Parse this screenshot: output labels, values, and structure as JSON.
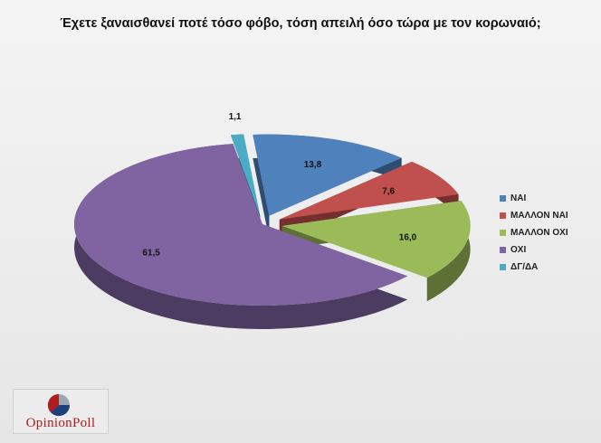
{
  "title": "Έχετε ξαναισθανεί ποτέ τόσο φόβο, τόση απειλή όσο τώρα με τον κορωναιό;",
  "chart_data": {
    "type": "pie",
    "title": "Έχετε ξαναισθανεί ποτέ τόσο φόβο, τόση απειλή όσο τώρα με τον κορωναιό;",
    "categories": [
      "ΝΑΙ",
      "ΜΑΛΛΟΝ ΝΑΙ",
      "ΜΑΛΛΟΝ ΟΧΙ",
      "ΟΧΙ",
      "ΔΓ/ΔΑ"
    ],
    "values": [
      13.8,
      7.6,
      16.0,
      61.5,
      1.1
    ],
    "value_labels": [
      "13,8",
      "7,6",
      "16,0",
      "61,5",
      "1,1"
    ],
    "colors": [
      "#4f81bd",
      "#c0504d",
      "#9bbb59",
      "#8064a2",
      "#4bacc6"
    ],
    "style": "3d-exploded",
    "legend": "right"
  },
  "logo": {
    "text": "OpinionPoll"
  }
}
